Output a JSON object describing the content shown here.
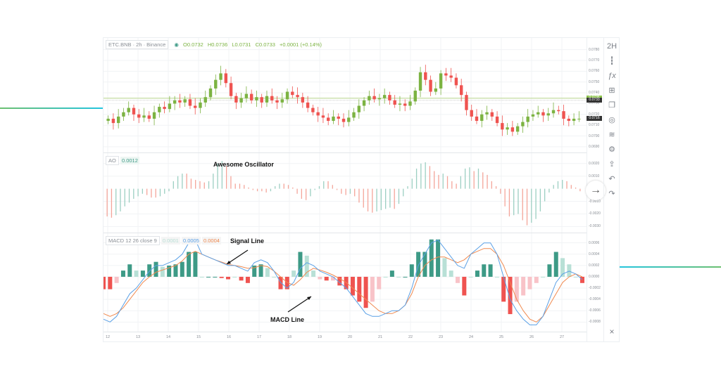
{
  "chart_data": [
    {
      "type": "candlestick",
      "title": "ETC.BNB · 2h · Binance",
      "ohlc_header": {
        "open": "O0.0732",
        "high": "H0.0736",
        "low": "L0.0731",
        "close": "C0.0733",
        "change": "+0.0001 (+0.14%)"
      },
      "yticks": [
        "0.0780",
        "0.0770",
        "0.0760",
        "0.0750",
        "0.0740",
        "0.0730",
        "0.0720",
        "0.0710",
        "0.0700",
        "0.0690"
      ],
      "ylim": [
        0.0688,
        0.0783
      ],
      "price_tags": [
        {
          "value": "0.0735",
          "color": "#8bc34a"
        },
        {
          "value": "0.0733",
          "color": "#333333"
        },
        {
          "value": "0.0716",
          "color": "#333333"
        }
      ],
      "horizontal_line": 0.0735,
      "close_series": [
        0.0716,
        0.0712,
        0.0718,
        0.0722,
        0.0726,
        0.072,
        0.0717,
        0.0719,
        0.0716,
        0.0722,
        0.0727,
        0.0725,
        0.073,
        0.0733,
        0.0731,
        0.0734,
        0.0728,
        0.0726,
        0.0731,
        0.0736,
        0.0744,
        0.0752,
        0.0758,
        0.0749,
        0.0737,
        0.0731,
        0.0735,
        0.0739,
        0.0733,
        0.0736,
        0.0731,
        0.0737,
        0.0733,
        0.0731,
        0.0734,
        0.0741,
        0.0738,
        0.0736,
        0.0731,
        0.0726,
        0.0722,
        0.0719,
        0.0717,
        0.0714,
        0.0718,
        0.0716,
        0.0713,
        0.0717,
        0.0722,
        0.0728,
        0.0733,
        0.0737,
        0.0734,
        0.0735,
        0.0738,
        0.0733,
        0.0729,
        0.073,
        0.0728,
        0.0732,
        0.0742,
        0.0759,
        0.0752,
        0.0741,
        0.0744,
        0.0758,
        0.0756,
        0.0754,
        0.0747,
        0.0738,
        0.0724,
        0.0718,
        0.0714,
        0.072,
        0.0722,
        0.0718,
        0.0712,
        0.0706,
        0.0708,
        0.0704,
        0.0709,
        0.0713,
        0.0718,
        0.072,
        0.0722,
        0.0719,
        0.0721,
        0.0724,
        0.0723,
        0.0716,
        0.0714,
        0.0716,
        0.0716
      ],
      "xticks": [
        "12",
        "13",
        "14",
        "15",
        "16",
        "17",
        "18",
        "19",
        "20",
        "21",
        "22",
        "23",
        "24",
        "25",
        "26",
        "27"
      ]
    },
    {
      "type": "bar",
      "title": "AO",
      "annotation": "Awesome Oscillator",
      "current_value": "0.0012",
      "yticks": [
        "0.0020",
        "0.0010",
        "-0.0010",
        "-0.0020",
        "-0.0030"
      ],
      "ylim": [
        -0.0032,
        0.0026
      ],
      "values": [
        -0.0022,
        -0.0023,
        -0.0021,
        -0.0018,
        -0.0014,
        -0.0011,
        -0.0008,
        -0.0006,
        -0.0004,
        -0.0005,
        -0.0007,
        -0.0007,
        -0.0006,
        -0.0004,
        -0.0002,
        0.0006,
        0.001,
        0.0012,
        0.0012,
        0.0008,
        0.0007,
        0.0006,
        0.0005,
        0.0006,
        0.0012,
        0.002,
        0.0022,
        0.0018,
        0.001,
        0.0004,
        0.0004,
        0.0003,
        0.0001,
        -0.0001,
        -0.0002,
        -0.0002,
        -0.0003,
        -0.0002,
        0.0002,
        0.0004,
        0.0004,
        0.0003,
        0.0001,
        -0.0004,
        -0.0008,
        -0.0009,
        -0.0006,
        -0.0001,
        0.0002,
        0.0006,
        0.0006,
        0.0003,
        -0.0001,
        -0.0004,
        -0.0005,
        -0.0004,
        -0.0006,
        -0.0011,
        -0.0015,
        -0.0018,
        -0.0019,
        -0.0018,
        -0.0017,
        -0.0016,
        -0.0015,
        -0.0016,
        -0.0012,
        -0.0006,
        0.0002,
        0.0008,
        0.0016,
        0.002,
        0.0021,
        0.0018,
        0.0014,
        0.0011,
        0.0012,
        0.001,
        0.0006,
        0.0004,
        0.001,
        0.0016,
        0.0017,
        0.0014,
        0.0016,
        0.0013,
        0.0011,
        0.0006,
        0.0002,
        -0.0004,
        -0.0014,
        -0.0022,
        -0.0021,
        -0.002,
        -0.0025,
        -0.0029,
        -0.0027,
        -0.0024,
        -0.0018,
        -0.001,
        -0.0003,
        0.0003,
        0.0006,
        0.0007,
        0.0006,
        0.0003,
        0.0001,
        -0.0002
      ]
    },
    {
      "type": "line+bar",
      "title": "MACD 12 26 close 9",
      "legend_values": {
        "histogram": "0.0001",
        "macd": "0.0005",
        "signal": "0.0004"
      },
      "annotations": [
        "Signal Line",
        "MACD Line"
      ],
      "yticks": [
        "0.0006",
        "0.0004",
        "0.0002",
        "0.0000",
        "-0.0002",
        "-0.0004",
        "-0.0006",
        "-0.0008"
      ],
      "ylim": [
        -0.00092,
        0.00072
      ],
      "macd": [
        -0.00075,
        -0.0008,
        -0.0007,
        -0.0005,
        -0.0003,
        -0.0002,
        -5e-05,
        0.0001,
        0.0002,
        0.0002,
        0.00025,
        0.0003,
        0.0004,
        0.0006,
        0.00065,
        0.0004,
        0.00035,
        0.0003,
        0.00025,
        0.0002,
        0.0002,
        0.00015,
        0.0001,
        0.00025,
        0.0003,
        0.00025,
        0.0001,
        -0.0001,
        -0.0002,
        -0.0001,
        0.00015,
        0.00025,
        0.0002,
        0.0001,
        5e-05,
        0.0,
        -0.0001,
        -0.0002,
        -0.00035,
        -0.0005,
        -0.00065,
        -0.0007,
        -0.0007,
        -0.00065,
        -0.0006,
        -0.0006,
        -0.0005,
        -0.0002,
        0.0002,
        0.0004,
        0.0006,
        0.00065,
        0.0005,
        0.00035,
        0.0002,
        0.00015,
        0.0004,
        0.0005,
        0.0006,
        0.0006,
        0.0004,
        0.0,
        -0.0004,
        -0.0006,
        -0.00075,
        -0.00085,
        -0.00085,
        -0.0007,
        -0.0004,
        -0.0001,
        5e-05,
        0.0001,
        5e-05,
        -5e-05
      ],
      "signal": [
        -0.00065,
        -0.0007,
        -0.00065,
        -0.00055,
        -0.0004,
        -0.00025,
        -0.0001,
        0.0,
        8e-05,
        0.00012,
        0.00016,
        0.0002,
        0.00028,
        0.0004,
        0.00045,
        0.0004,
        0.00035,
        0.0003,
        0.00026,
        0.00022,
        0.0002,
        0.00018,
        0.00015,
        0.00016,
        0.0002,
        0.00018,
        0.0001,
        0.0,
        -0.0001,
        -0.00015,
        -5e-05,
        8e-05,
        0.00015,
        0.00012,
        8e-05,
        3e-05,
        -3e-05,
        -0.0001,
        -0.0002,
        -0.0003,
        -0.0004,
        -0.0005,
        -0.0006,
        -0.00065,
        -0.00065,
        -0.0006,
        -0.0005,
        -0.0003,
        0.0,
        0.0002,
        0.0003,
        0.00035,
        0.00035,
        0.0003,
        0.00025,
        0.0003,
        0.0004,
        0.00045,
        0.0005,
        0.0005,
        0.0004,
        0.0002,
        -0.0001,
        -0.0004,
        -0.0006,
        -0.00075,
        -0.0008,
        -0.0007,
        -0.0005,
        -0.0003,
        -0.0001,
        0.0,
        5e-05,
        0.0
      ],
      "xticks": [
        "12",
        "13",
        "14",
        "15",
        "16",
        "17",
        "18",
        "19",
        "20",
        "21",
        "22",
        "23",
        "24",
        "25",
        "26",
        "27"
      ]
    }
  ],
  "toolbar": {
    "interval": "2H",
    "icons": [
      "candles-icon",
      "fx-icon",
      "compare-icon",
      "snapshot-icon",
      "eye-icon",
      "layers-icon",
      "gear-icon",
      "share-icon",
      "undo-icon",
      "redo-icon"
    ],
    "close_glyph": "×"
  },
  "legend": {
    "symbol": "ETC.BNB · 2h · Binance",
    "ao_label": "AO",
    "macd_label": "MACD 12 26 close 9"
  },
  "colors": {
    "up": "#7cb342",
    "down": "#ef5350",
    "ao_up": "#9ccfc2",
    "ao_down": "#f4a59a",
    "macd": "#5aa0e6",
    "signal": "#f08a50",
    "hist_up": "#3d9a86",
    "hist_up_light": "#b8e0d6",
    "hist_down": "#ef5350",
    "hist_down_light": "#f8c3c8",
    "deco_green": "#6cc070",
    "deco_cyan": "#22c5e0"
  }
}
